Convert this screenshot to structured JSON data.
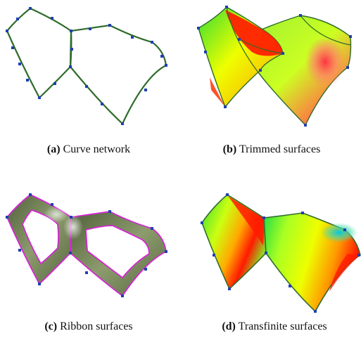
{
  "figure": {
    "panels": [
      {
        "tag": "(a)",
        "caption": "Curve network"
      },
      {
        "tag": "(b)",
        "caption": "Trimmed surfaces"
      },
      {
        "tag": "(c)",
        "caption": "Ribbon surfaces"
      },
      {
        "tag": "(d)",
        "caption": "Transfinite surfaces"
      }
    ]
  },
  "colors": {
    "curve": "#2f6b2a",
    "control_point": "#1f3fb0",
    "ribbon_fill": "#6f7f54",
    "ribbon_edge": "#d426d4",
    "heat_red": "#ff1a00",
    "heat_yellow": "#eeff00",
    "heat_green": "#33dd33",
    "heat_cyan": "#00c8e0"
  }
}
